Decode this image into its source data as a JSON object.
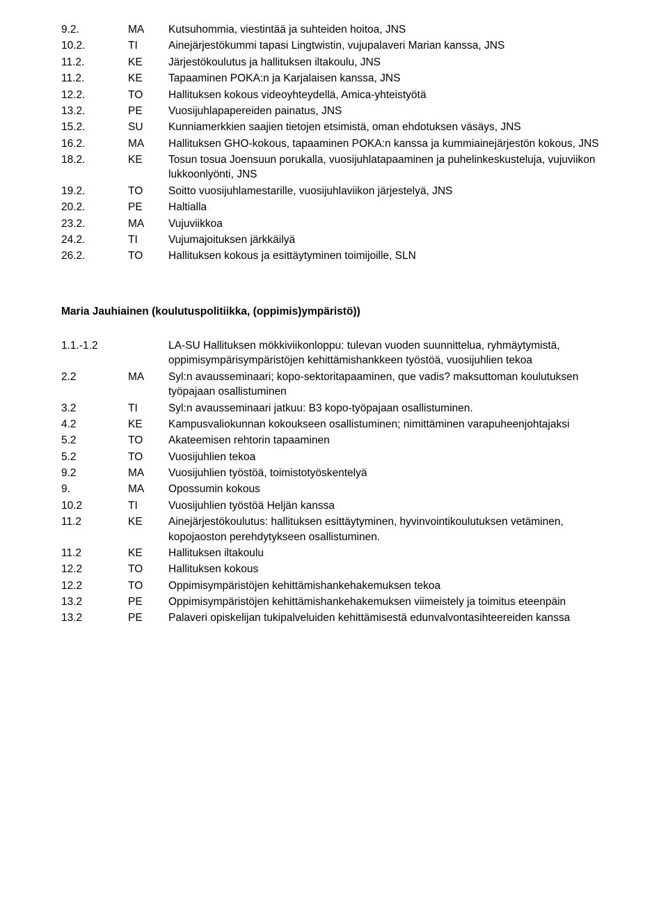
{
  "fontsize": 15.5,
  "line_height": 1.38,
  "text_color": "#000000",
  "background_color": "#ffffff",
  "col_widths": {
    "date": 96,
    "day": 58
  },
  "block1": [
    {
      "date": "9.2.",
      "day": "MA",
      "text": "Kutsuhommia, viestintää ja suhteiden hoitoa, JNS"
    },
    {
      "date": "10.2.",
      "day": "TI",
      "text": "Ainejärjestökummi tapasi Lingtwistin, vujupalaveri Marian kanssa, JNS"
    },
    {
      "date": "11.2.",
      "day": "KE",
      "text": "Järjestökoulutus ja hallituksen iltakoulu, JNS"
    },
    {
      "date": "11.2.",
      "day": "KE",
      "text": "Tapaaminen POKA:n ja Karjalaisen kanssa, JNS"
    },
    {
      "date": "12.2.",
      "day": "TO",
      "text": "Hallituksen kokous videoyhteydellä, Amica-yhteistyötä"
    },
    {
      "date": "13.2.",
      "day": "PE",
      "text": "Vuosijuhlapapereiden painatus, JNS"
    },
    {
      "date": "15.2.",
      "day": "SU",
      "text": "Kunniamerkkien saajien tietojen etsimistä, oman ehdotuksen väsäys, JNS"
    },
    {
      "date": "16.2.",
      "day": "MA",
      "text": "Hallituksen GHO-kokous, tapaaminen POKA:n kanssa ja kummiainejärjestön kokous, JNS"
    },
    {
      "date": "18.2.",
      "day": "KE",
      "text": "Tosun tosua Joensuun porukalla, vuosijuhlatapaaminen ja puhelinkeskusteluja, vujuviikon lukkoonlyönti, JNS"
    },
    {
      "date": "19.2.",
      "day": "TO",
      "text": "Soitto vuosijuhlamestarille, vuosijuhlaviikon järjestelyä, JNS"
    },
    {
      "date": "20.2.",
      "day": "PE",
      "text": "Haltialla"
    },
    {
      "date": "23.2.",
      "day": "MA",
      "text": "Vujuviikkoa"
    },
    {
      "date": "24.2.",
      "day": "TI",
      "text": "Vujumajoituksen järkkäilyä"
    },
    {
      "date": "26.2.",
      "day": "TO",
      "text": "Hallituksen kokous ja esittäytyminen toimijoille, SLN"
    }
  ],
  "heading2": "Maria Jauhiainen (koulutuspolitiikka, (oppimis)ympäristö))",
  "block2": [
    {
      "date": "1.1.-1.2",
      "day": "",
      "text": "LA-SU Hallituksen mökkiviikonloppu: tulevan vuoden suunnittelua, ryhmäytymistä, oppimisympärisympäristöjen kehittämishankkeen työstöä, vuosijuhlien tekoa"
    },
    {
      "date": "2.2",
      "day": "MA",
      "text": "Syl:n avausseminaari; kopo-sektoritapaaminen, que vadis? maksuttoman koulutuksen työpajaan osallistuminen"
    },
    {
      "date": "3.2",
      "day": "TI",
      "text": "Syl:n avausseminaari jatkuu: B3 kopo-työpajaan osallistuminen."
    },
    {
      "date": "4.2",
      "day": "KE",
      "text": "Kampusvaliokunnan kokoukseen osallistuminen; nimittäminen varapuheenjohtajaksi"
    },
    {
      "date": "5.2",
      "day": "TO",
      "text": "Akateemisen rehtorin tapaaminen"
    },
    {
      "date": "5.2",
      "day": "TO",
      "text": "Vuosijuhlien tekoa"
    },
    {
      "date": "9.2",
      "day": "MA",
      "text": "Vuosijuhlien työstöä, toimistotyöskentelyä"
    },
    {
      "date": "9.",
      "day": "MA",
      "text": "Opossumin kokous"
    },
    {
      "date": "10.2",
      "day": "TI",
      "text": "Vuosijuhlien työstöä Heljän kanssa"
    },
    {
      "date": "11.2",
      "day": "KE",
      "text": "Ainejärjestökoulutus: hallituksen esittäytyminen, hyvinvointikoulutuksen vetäminen, kopojaoston perehdytykseen osallistuminen."
    },
    {
      "date": "11.2",
      "day": "KE",
      "text": "Hallituksen iltakoulu"
    },
    {
      "date": "12.2",
      "day": "TO",
      "text": "Hallituksen kokous"
    },
    {
      "date": "12.2",
      "day": "TO",
      "text": "Oppimisympäristöjen kehittämishankehakemuksen tekoa"
    },
    {
      "date": "13.2",
      "day": "PE",
      "text": "Oppimisympäristöjen kehittämishankehakemuksen viimeistely ja toimitus eteenpäin"
    },
    {
      "date": "13.2",
      "day": "PE",
      "text": "Palaveri opiskelijan tukipalveluiden kehittämisestä edunvalvontasihteereiden kanssa"
    }
  ]
}
